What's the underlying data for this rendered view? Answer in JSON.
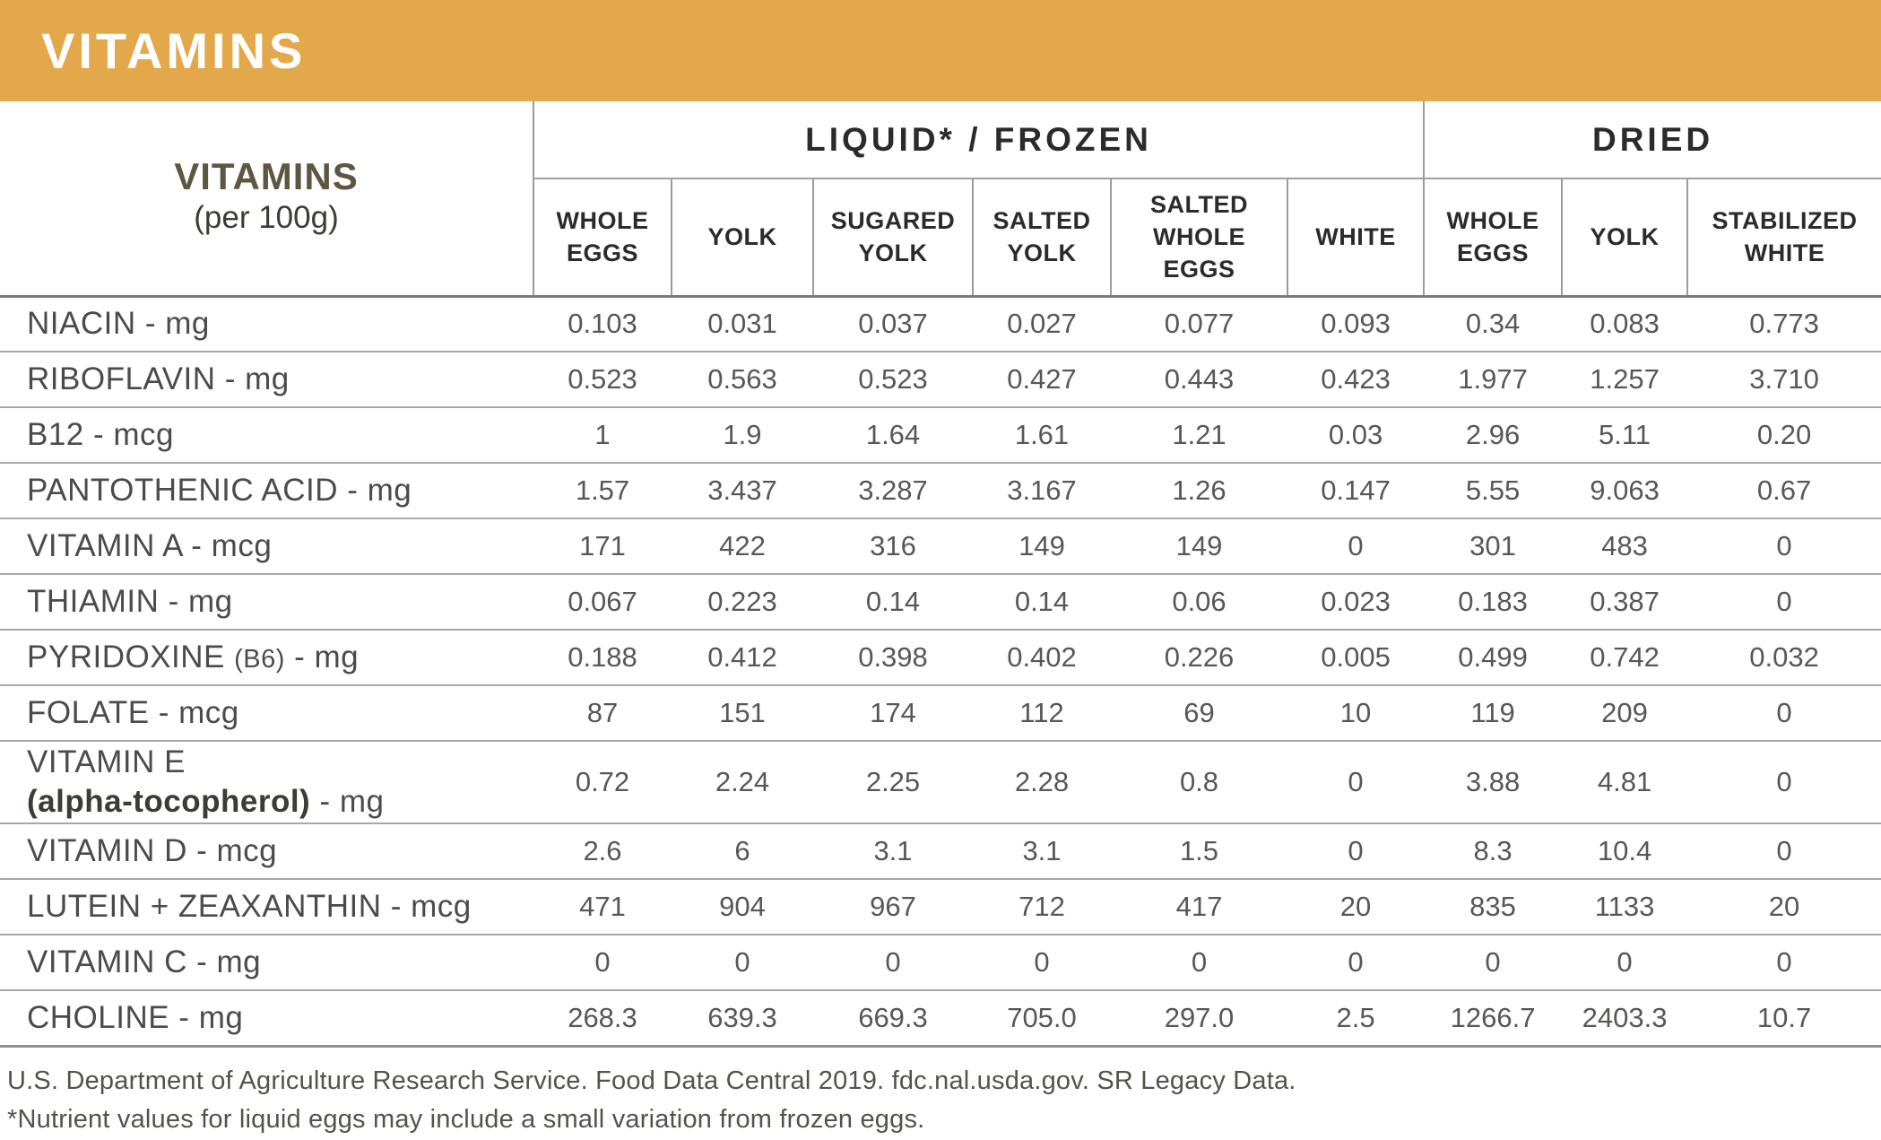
{
  "banner": {
    "title": "VITAMINS"
  },
  "colors": {
    "banner_gold": "#E2A84A",
    "header_text": "#2B2B2B",
    "corner_olive": "#5E5640",
    "value_gray": "#595755"
  },
  "table": {
    "corner": {
      "title": "VITAMINS",
      "subtitle": "(per 100g)"
    },
    "groups": [
      {
        "label": "LIQUID* / FROZEN",
        "span": 6
      },
      {
        "label": "DRIED",
        "span": 3
      }
    ],
    "columns": [
      "WHOLE EGGS",
      "YOLK",
      "SUGARED YOLK",
      "SALTED YOLK",
      "SALTED WHOLE EGGS",
      "WHITE",
      "WHOLE EGGS",
      "YOLK",
      "STABILIZED WHITE"
    ],
    "rows": [
      {
        "label": "NIACIN - mg",
        "values": [
          "0.103",
          "0.031",
          "0.037",
          "0.027",
          "0.077",
          "0.093",
          "0.34",
          "0.083",
          "0.773"
        ]
      },
      {
        "label": "RIBOFLAVIN - mg",
        "values": [
          "0.523",
          "0.563",
          "0.523",
          "0.427",
          "0.443",
          "0.423",
          "1.977",
          "1.257",
          "3.710"
        ]
      },
      {
        "label": "B12 - mcg",
        "values": [
          "1",
          "1.9",
          "1.64",
          "1.61",
          "1.21",
          "0.03",
          "2.96",
          "5.11",
          "0.20"
        ]
      },
      {
        "label": "PANTOTHENIC ACID - mg",
        "values": [
          "1.57",
          "3.437",
          "3.287",
          "3.167",
          "1.26",
          "0.147",
          "5.55",
          "9.063",
          "0.67"
        ]
      },
      {
        "label": "VITAMIN A - mcg",
        "values": [
          "171",
          "422",
          "316",
          "149",
          "149",
          "0",
          "301",
          "483",
          "0"
        ]
      },
      {
        "label": "THIAMIN - mg",
        "values": [
          "0.067",
          "0.223",
          "0.14",
          "0.14",
          "0.06",
          "0.023",
          "0.183",
          "0.387",
          "0"
        ]
      },
      {
        "segments": [
          {
            "t": "PYRIDOXINE "
          },
          {
            "t": "(B6)",
            "style": "small"
          },
          {
            "t": " - mg"
          }
        ],
        "values": [
          "0.188",
          "0.412",
          "0.398",
          "0.402",
          "0.226",
          "0.005",
          "0.499",
          "0.742",
          "0.032"
        ]
      },
      {
        "label": "FOLATE - mcg",
        "values": [
          "87",
          "151",
          "174",
          "112",
          "69",
          "10",
          "119",
          "209",
          "0"
        ]
      },
      {
        "tall": true,
        "segments": [
          {
            "t": "VITAMIN E\n"
          },
          {
            "t": "(alpha-tocopherol)",
            "style": "bold"
          },
          {
            "t": " - mg"
          }
        ],
        "values": [
          "0.72",
          "2.24",
          "2.25",
          "2.28",
          "0.8",
          "0",
          "3.88",
          "4.81",
          "0"
        ]
      },
      {
        "label": "VITAMIN D - mcg",
        "values": [
          "2.6",
          "6",
          "3.1",
          "3.1",
          "1.5",
          "0",
          "8.3",
          "10.4",
          "0"
        ]
      },
      {
        "label": "LUTEIN + ZEAXANTHIN - mcg",
        "values": [
          "471",
          "904",
          "967",
          "712",
          "417",
          "20",
          "835",
          "1133",
          "20"
        ]
      },
      {
        "label": "VITAMIN C - mg",
        "values": [
          "0",
          "0",
          "0",
          "0",
          "0",
          "0",
          "0",
          "0",
          "0"
        ]
      },
      {
        "label": "CHOLINE - mg",
        "values": [
          "268.3",
          "639.3",
          "669.3",
          "705.0",
          "297.0",
          "2.5",
          "1266.7",
          "2403.3",
          "10.7"
        ]
      }
    ]
  },
  "footer": {
    "line1": "U.S. Department of Agriculture Research Service. Food Data Central 2019. fdc.nal.usda.gov. SR Legacy Data.",
    "line2": "*Nutrient values for liquid eggs may include a small variation from frozen eggs."
  }
}
